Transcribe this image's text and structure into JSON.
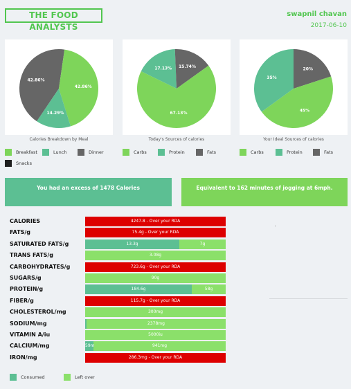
{
  "header": {
    "brand": "THE FOOD ANALYSTS",
    "user_name": "swapnil chavan",
    "date": "2017-06-10"
  },
  "colors": {
    "green": "#7ed55a",
    "teal": "#5cbf93",
    "gray": "#666666",
    "dark": "#1f1f1f",
    "red": "#dd0000",
    "leftover": "#8be06a"
  },
  "charts": [
    {
      "caption": "Calories Breakdown by Meal",
      "slices": [
        {
          "label": "42.86%",
          "value": 42.86,
          "color": "#666666"
        },
        {
          "label": "42.86%",
          "value": 42.86,
          "color": "#7ed55a"
        },
        {
          "label": "14.29%",
          "value": 14.29,
          "color": "#5cbf93"
        }
      ]
    },
    {
      "caption": "Today's Sources of calories",
      "slices": [
        {
          "label": "17.13%",
          "value": 17.13,
          "color": "#5cbf93"
        },
        {
          "label": "15.74%",
          "value": 15.74,
          "color": "#666666"
        },
        {
          "label": "67.13%",
          "value": 67.13,
          "color": "#7ed55a"
        }
      ]
    },
    {
      "caption": "Your Ideal Sources of calories",
      "slices": [
        {
          "label": "20%",
          "value": 20,
          "color": "#666666"
        },
        {
          "label": "45%",
          "value": 45,
          "color": "#7ed55a"
        },
        {
          "label": "35%",
          "value": 35,
          "color": "#5cbf93"
        }
      ]
    }
  ],
  "legends": [
    [
      {
        "label": "Breakfast",
        "color": "#7ed55a"
      },
      {
        "label": "Lunch",
        "color": "#5cbf93"
      },
      {
        "label": "Dinner",
        "color": "#666666"
      },
      {
        "label": "Snacks",
        "color": "#1f1f1f"
      }
    ],
    [
      {
        "label": "Carbs",
        "color": "#7ed55a"
      },
      {
        "label": "Protein",
        "color": "#5cbf93"
      },
      {
        "label": "Fats",
        "color": "#666666"
      }
    ],
    [
      {
        "label": "Carbs",
        "color": "#7ed55a"
      },
      {
        "label": "Protein",
        "color": "#5cbf93"
      },
      {
        "label": "Fats",
        "color": "#666666"
      }
    ]
  ],
  "banners": {
    "excess": "You had an excess of 1478 Calories",
    "jogging": "Equivalent to 162 minutes of jogging at 6mph."
  },
  "nutrients": [
    {
      "label": "CALORIES",
      "status": "over",
      "text": "4247.8 - Over your RDA"
    },
    {
      "label": "FATS/g",
      "status": "over",
      "text": "75.4g - Over your RDA"
    },
    {
      "label": "SATURATED FATS/g",
      "status": "split",
      "consumed_fraction": 0.67,
      "consumed": "13.3g",
      "left": "7g"
    },
    {
      "label": "TRANS FATS/g",
      "status": "split",
      "consumed_fraction": 0,
      "consumed": "",
      "left": "3.08g"
    },
    {
      "label": "CARBOHYDRATES/g",
      "status": "over",
      "text": "723.6g - Over your RDA"
    },
    {
      "label": "SUGARS/g",
      "status": "split",
      "consumed_fraction": 0,
      "consumed": "",
      "left": "90g"
    },
    {
      "label": "PROTEIN/g",
      "status": "split",
      "consumed_fraction": 0.76,
      "consumed": "184.6g",
      "left": "58g"
    },
    {
      "label": "FIBER/g",
      "status": "over",
      "text": "115.7g - Over your RDA"
    },
    {
      "label": "CHOLESTEROL/mg",
      "status": "split",
      "consumed_fraction": 0,
      "consumed": "",
      "left": "300mg"
    },
    {
      "label": "SODIUM/mg",
      "status": "split",
      "consumed_fraction": 0.01,
      "consumed": "",
      "left": "2378mg"
    },
    {
      "label": "VITAMIN A/iu",
      "status": "split",
      "consumed_fraction": 0,
      "consumed": "",
      "left": "5000iu"
    },
    {
      "label": "CALCIUM/mg",
      "status": "split",
      "consumed_fraction": 0.06,
      "consumed": "59m",
      "left": "941mg"
    },
    {
      "label": "IRON/mg",
      "status": "over",
      "text": "286.3mg - Over your RDA"
    }
  ],
  "footer_legend": [
    {
      "label": "Consumed",
      "color": "#5cbf93"
    },
    {
      "label": "Left over",
      "color": "#8be06a"
    }
  ]
}
